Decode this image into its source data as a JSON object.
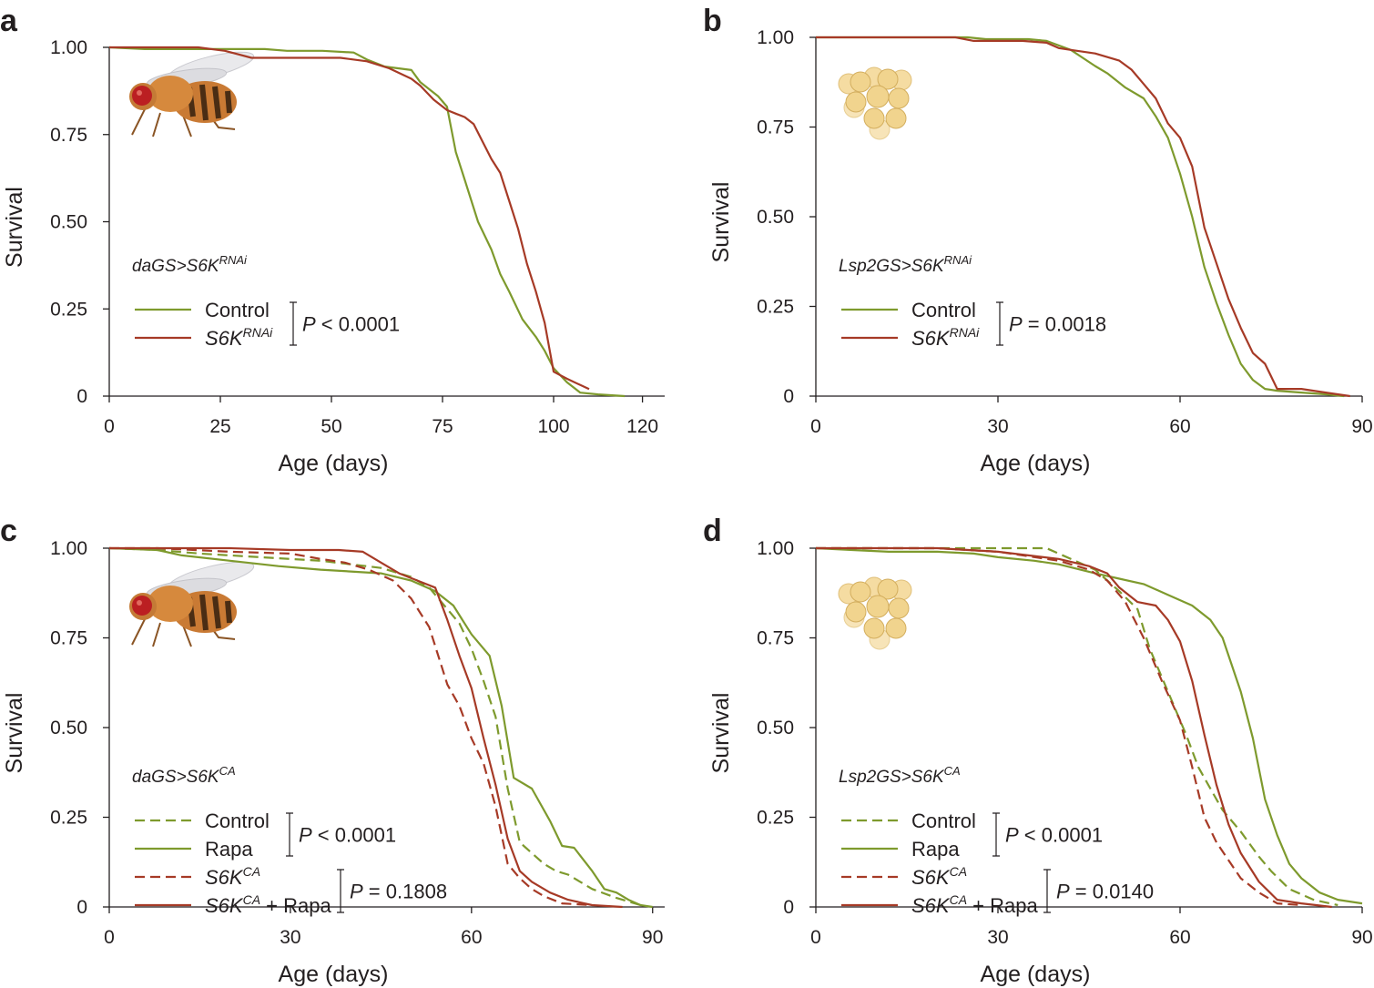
{
  "colors": {
    "control": "#7e9a2d",
    "treatment": "#a63a26",
    "axis": "#231f20"
  },
  "chart_data": [
    {
      "panel": "a",
      "type": "line",
      "title": "",
      "xlabel": "Age (days)",
      "ylabel": "Survival",
      "xlim": [
        0,
        125
      ],
      "ylim": [
        0,
        1.0
      ],
      "xticks": [
        0,
        25,
        50,
        75,
        100,
        120
      ],
      "yticks": [
        "0",
        "0.25",
        "0.50",
        "0.75",
        "1.00"
      ],
      "genotype": {
        "prefix": "daGS>S6K",
        "sup": "RNAi"
      },
      "illustration": "fly-icon",
      "legend": [
        {
          "text": "Control",
          "sup": "",
          "suffix": "",
          "color": "#7e9a2d",
          "dashed": false
        },
        {
          "text": "S6K",
          "sup": "RNAi",
          "suffix": "",
          "color": "#a63a26",
          "dashed": false
        }
      ],
      "pvalues": [
        {
          "text": " < 0.0001",
          "rows": [
            0,
            1
          ]
        }
      ],
      "series": [
        {
          "name": "Control",
          "color": "#7e9a2d",
          "dashed": false,
          "x": [
            0,
            8,
            20,
            35,
            40,
            48,
            55,
            58,
            62,
            68,
            70,
            74,
            76,
            78,
            80,
            83,
            86,
            88,
            90,
            93,
            96,
            98,
            100,
            103,
            106,
            110,
            116
          ],
          "y": [
            1.0,
            0.995,
            0.995,
            0.995,
            0.99,
            0.99,
            0.985,
            0.965,
            0.945,
            0.935,
            0.9,
            0.86,
            0.83,
            0.7,
            0.62,
            0.5,
            0.42,
            0.35,
            0.3,
            0.22,
            0.17,
            0.13,
            0.08,
            0.04,
            0.01,
            0.005,
            0
          ]
        },
        {
          "name": "S6K RNAi",
          "color": "#a63a26",
          "dashed": false,
          "x": [
            0,
            20,
            26,
            32,
            52,
            58,
            63,
            68,
            70,
            73,
            76,
            78,
            80,
            82,
            84,
            86,
            88,
            90,
            92,
            94,
            96,
            98,
            100,
            103,
            108
          ],
          "y": [
            1.0,
            1.0,
            0.99,
            0.97,
            0.97,
            0.96,
            0.94,
            0.91,
            0.89,
            0.85,
            0.82,
            0.81,
            0.8,
            0.78,
            0.73,
            0.68,
            0.64,
            0.56,
            0.48,
            0.38,
            0.3,
            0.21,
            0.07,
            0.05,
            0.02
          ]
        }
      ]
    },
    {
      "panel": "b",
      "type": "line",
      "title": "",
      "xlabel": "Age (days)",
      "ylabel": "Survival",
      "xlim": [
        0,
        90
      ],
      "ylim": [
        0,
        1.0
      ],
      "xticks": [
        0,
        30,
        60,
        90
      ],
      "yticks": [
        "0",
        "0.25",
        "0.50",
        "0.75",
        "1.00"
      ],
      "genotype": {
        "prefix": "Lsp2GS>S6K",
        "sup": "RNAi"
      },
      "illustration": "fat-body-icon",
      "legend": [
        {
          "text": "Control",
          "sup": "",
          "suffix": "",
          "color": "#7e9a2d",
          "dashed": false
        },
        {
          "text": "S6K",
          "sup": "RNAi",
          "suffix": "",
          "color": "#a63a26",
          "dashed": false
        }
      ],
      "pvalues": [
        {
          "text": " = 0.0018",
          "rows": [
            0,
            1
          ]
        }
      ],
      "series": [
        {
          "name": "Control",
          "color": "#7e9a2d",
          "dashed": false,
          "x": [
            0,
            25,
            28,
            35,
            38,
            42,
            46,
            48,
            51,
            54,
            56,
            58,
            60,
            62,
            64,
            66,
            68,
            70,
            72,
            74,
            76,
            80,
            84,
            87
          ],
          "y": [
            1.0,
            1.0,
            0.995,
            0.995,
            0.99,
            0.965,
            0.92,
            0.9,
            0.86,
            0.83,
            0.78,
            0.72,
            0.62,
            0.5,
            0.36,
            0.26,
            0.17,
            0.09,
            0.045,
            0.02,
            0.015,
            0.01,
            0.005,
            0
          ]
        },
        {
          "name": "S6K RNAi",
          "color": "#a63a26",
          "dashed": false,
          "x": [
            0,
            23,
            26,
            34,
            38,
            40,
            42,
            46,
            50,
            52,
            54,
            56,
            58,
            60,
            62,
            64,
            66,
            68,
            70,
            72,
            74,
            76,
            80,
            84,
            88
          ],
          "y": [
            1.0,
            1.0,
            0.99,
            0.99,
            0.985,
            0.97,
            0.965,
            0.955,
            0.935,
            0.91,
            0.87,
            0.83,
            0.76,
            0.72,
            0.64,
            0.47,
            0.37,
            0.27,
            0.19,
            0.12,
            0.09,
            0.02,
            0.02,
            0.01,
            0
          ]
        }
      ]
    },
    {
      "panel": "c",
      "type": "line",
      "title": "",
      "xlabel": "Age (days)",
      "ylabel": "Survival",
      "xlim": [
        0,
        92
      ],
      "ylim": [
        0,
        1.0
      ],
      "xticks": [
        0,
        30,
        60,
        90
      ],
      "yticks": [
        "0",
        "0.25",
        "0.50",
        "0.75",
        "1.00"
      ],
      "genotype": {
        "prefix": "daGS>S6K",
        "sup": "CA"
      },
      "illustration": "fly-icon",
      "legend": [
        {
          "text": "Control",
          "sup": "",
          "suffix": "",
          "color": "#7e9a2d",
          "dashed": true
        },
        {
          "text": "Rapa",
          "sup": "",
          "suffix": "",
          "color": "#7e9a2d",
          "dashed": false
        },
        {
          "text": "S6K",
          "sup": "CA",
          "suffix": "",
          "color": "#a63a26",
          "dashed": true
        },
        {
          "text": "S6K",
          "sup": "CA",
          "suffix": " + Rapa",
          "color": "#a63a26",
          "dashed": false
        }
      ],
      "pvalues": [
        {
          "text": " < 0.0001",
          "rows": [
            0,
            1
          ]
        },
        {
          "text": " = 0.1808",
          "rows": [
            2,
            3
          ]
        }
      ],
      "series": [
        {
          "name": "Control",
          "color": "#7e9a2d",
          "dashed": true,
          "x": [
            0,
            8,
            15,
            25,
            35,
            40,
            45,
            50,
            53,
            55,
            58,
            60,
            62,
            64,
            66,
            68,
            70,
            72,
            74,
            76,
            78,
            80,
            84,
            88
          ],
          "y": [
            1.0,
            0.995,
            0.985,
            0.975,
            0.965,
            0.955,
            0.945,
            0.92,
            0.89,
            0.85,
            0.79,
            0.72,
            0.63,
            0.53,
            0.33,
            0.18,
            0.15,
            0.12,
            0.1,
            0.09,
            0.07,
            0.05,
            0.025,
            0.005
          ]
        },
        {
          "name": "Rapa",
          "color": "#7e9a2d",
          "dashed": false,
          "x": [
            0,
            8,
            12,
            20,
            28,
            35,
            40,
            45,
            50,
            54,
            57,
            60,
            63,
            65,
            67,
            70,
            73,
            75,
            77,
            80,
            82,
            84,
            86,
            88,
            90
          ],
          "y": [
            1.0,
            0.995,
            0.98,
            0.965,
            0.95,
            0.94,
            0.935,
            0.93,
            0.91,
            0.88,
            0.84,
            0.76,
            0.7,
            0.56,
            0.36,
            0.33,
            0.24,
            0.17,
            0.165,
            0.1,
            0.05,
            0.04,
            0.02,
            0.005,
            0
          ]
        },
        {
          "name": "S6K CA",
          "color": "#a63a26",
          "dashed": true,
          "x": [
            0,
            8,
            20,
            30,
            35,
            39,
            43,
            47,
            50,
            53,
            56,
            58,
            60,
            62,
            64,
            66,
            68,
            70,
            72,
            75,
            80
          ],
          "y": [
            1.0,
            1.0,
            0.99,
            0.985,
            0.97,
            0.96,
            0.94,
            0.91,
            0.86,
            0.78,
            0.62,
            0.56,
            0.47,
            0.4,
            0.28,
            0.12,
            0.08,
            0.05,
            0.03,
            0.01,
            0.005
          ]
        },
        {
          "name": "S6K CA + Rapa",
          "color": "#a63a26",
          "dashed": false,
          "x": [
            0,
            20,
            30,
            38,
            42,
            45,
            48,
            51,
            54,
            56,
            58,
            60,
            62,
            64,
            66,
            68,
            70,
            73,
            76,
            80,
            85
          ],
          "y": [
            1.0,
            1.0,
            0.995,
            0.995,
            0.99,
            0.96,
            0.93,
            0.91,
            0.89,
            0.8,
            0.7,
            0.61,
            0.47,
            0.34,
            0.19,
            0.1,
            0.07,
            0.04,
            0.02,
            0.005,
            0
          ]
        }
      ]
    },
    {
      "panel": "d",
      "type": "line",
      "title": "",
      "xlabel": "Age (days)",
      "ylabel": "Survival",
      "xlim": [
        0,
        90
      ],
      "ylim": [
        0,
        1.0
      ],
      "xticks": [
        0,
        30,
        60,
        90
      ],
      "yticks": [
        "0",
        "0.25",
        "0.50",
        "0.75",
        "1.00"
      ],
      "genotype": {
        "prefix": "Lsp2GS>S6K",
        "sup": "CA"
      },
      "illustration": "fat-body-icon",
      "legend": [
        {
          "text": "Control",
          "sup": "",
          "suffix": "",
          "color": "#7e9a2d",
          "dashed": true
        },
        {
          "text": "Rapa",
          "sup": "",
          "suffix": "",
          "color": "#7e9a2d",
          "dashed": false
        },
        {
          "text": "S6K",
          "sup": "CA",
          "suffix": "",
          "color": "#a63a26",
          "dashed": true
        },
        {
          "text": "S6K",
          "sup": "CA",
          "suffix": " + Rapa",
          "color": "#a63a26",
          "dashed": false
        }
      ],
      "pvalues": [
        {
          "text": " < 0.0001",
          "rows": [
            0,
            1
          ]
        },
        {
          "text": " = 0.0140",
          "rows": [
            2,
            3
          ]
        }
      ],
      "series": [
        {
          "name": "Control",
          "color": "#7e9a2d",
          "dashed": true,
          "x": [
            0,
            20,
            38,
            42,
            46,
            50,
            53,
            55,
            58,
            61,
            63,
            65,
            67,
            70,
            73,
            75,
            78,
            82,
            86
          ],
          "y": [
            1.0,
            1.0,
            1.0,
            0.97,
            0.94,
            0.88,
            0.83,
            0.72,
            0.6,
            0.48,
            0.39,
            0.33,
            0.27,
            0.21,
            0.14,
            0.1,
            0.05,
            0.02,
            0.005
          ]
        },
        {
          "name": "Rapa",
          "color": "#7e9a2d",
          "dashed": false,
          "x": [
            0,
            6,
            12,
            20,
            26,
            30,
            36,
            40,
            46,
            50,
            54,
            58,
            62,
            65,
            67,
            70,
            72,
            74,
            76,
            78,
            80,
            83,
            86,
            90
          ],
          "y": [
            1.0,
            0.995,
            0.99,
            0.99,
            0.985,
            0.975,
            0.965,
            0.955,
            0.93,
            0.915,
            0.9,
            0.87,
            0.84,
            0.8,
            0.75,
            0.6,
            0.47,
            0.3,
            0.2,
            0.12,
            0.08,
            0.04,
            0.02,
            0.01
          ]
        },
        {
          "name": "S6K CA",
          "color": "#a63a26",
          "dashed": true,
          "x": [
            0,
            20,
            30,
            40,
            45,
            48,
            51,
            54,
            57,
            60,
            62,
            64,
            66,
            68,
            70,
            73,
            76,
            80
          ],
          "y": [
            1.0,
            1.0,
            0.99,
            0.965,
            0.94,
            0.91,
            0.85,
            0.75,
            0.63,
            0.52,
            0.39,
            0.25,
            0.18,
            0.13,
            0.08,
            0.04,
            0.01,
            0.005
          ]
        },
        {
          "name": "S6K CA + Rapa",
          "color": "#a63a26",
          "dashed": false,
          "x": [
            0,
            20,
            30,
            40,
            45,
            48,
            50,
            53,
            56,
            58,
            60,
            62,
            64,
            66,
            68,
            70,
            73,
            76,
            80,
            85
          ],
          "y": [
            1.0,
            1.0,
            0.99,
            0.97,
            0.95,
            0.93,
            0.89,
            0.85,
            0.84,
            0.8,
            0.74,
            0.63,
            0.48,
            0.34,
            0.23,
            0.15,
            0.07,
            0.02,
            0.01,
            0
          ]
        }
      ]
    }
  ]
}
